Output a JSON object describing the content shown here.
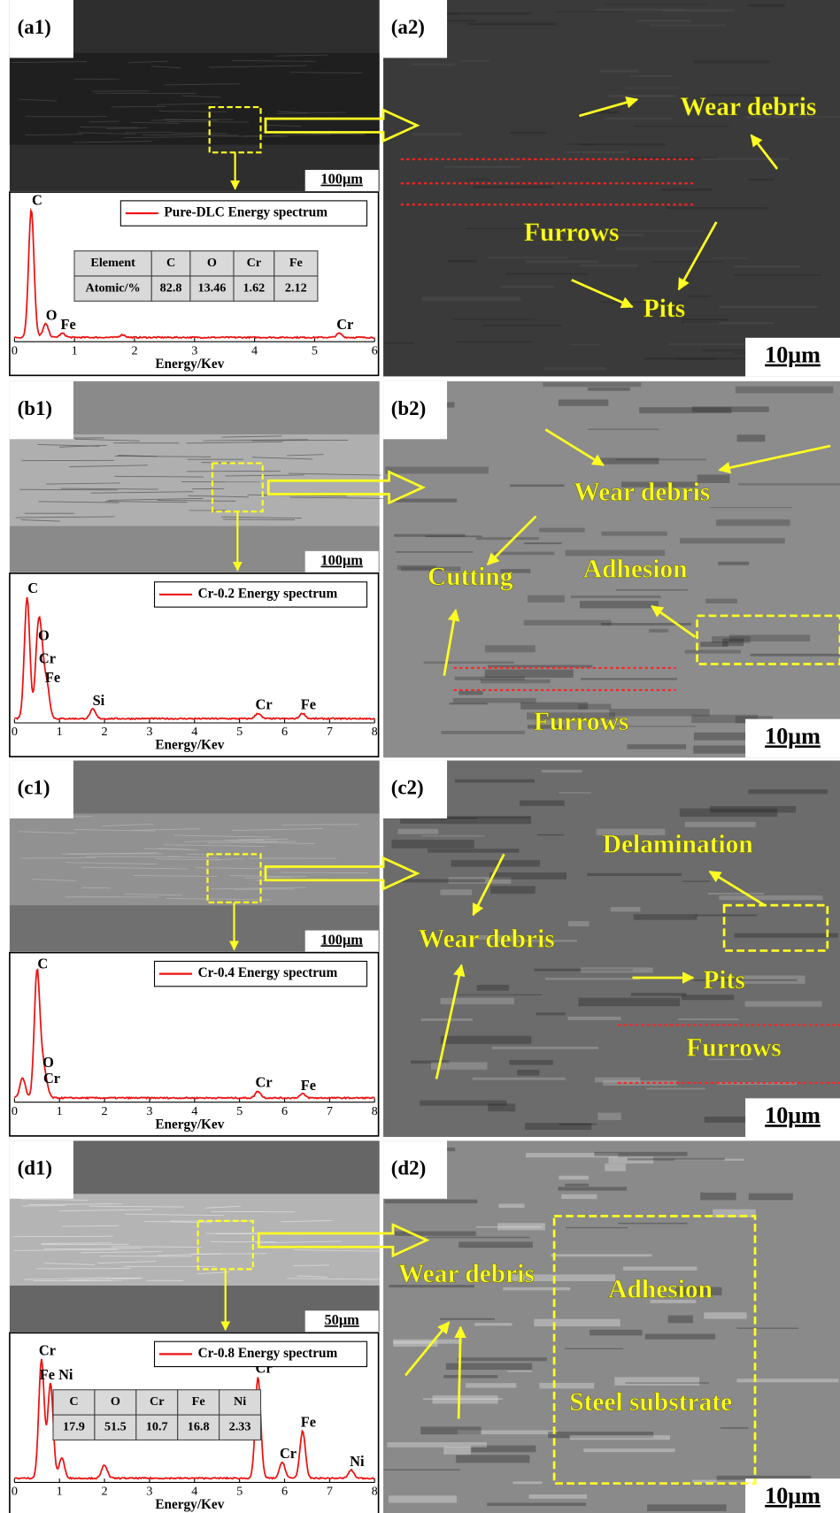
{
  "panels": [
    {
      "left_label": "(a1)",
      "right_label": "(a2)",
      "left_scale": "100μm",
      "right_scale": "10μm",
      "spectrum": {
        "legend": "Pure-DLC Energy spectrum",
        "xlim": [
          0,
          6
        ],
        "xticks": [
          0,
          1,
          2,
          3,
          4,
          5,
          6
        ],
        "xlabel": "Energy/Kev",
        "peaks": [
          {
            "label": "C",
            "energy": 0.28,
            "intensity": 0.95
          },
          {
            "label": "O",
            "energy": 0.52,
            "intensity": 0.1
          },
          {
            "label": "Fe",
            "energy": 0.8,
            "intensity": 0.03
          },
          {
            "energy": 1.8,
            "intensity": 0.02
          },
          {
            "label": "Cr",
            "energy": 5.41,
            "intensity": 0.03
          }
        ],
        "table": {
          "header": [
            "Element",
            "C",
            "O",
            "Cr",
            "Fe"
          ],
          "row": [
            "Atomic/%",
            "82.8",
            "13.46",
            "1.62",
            "2.12"
          ]
        }
      },
      "annotations": [
        "Wear debris",
        "Furrows",
        "Pits"
      ]
    },
    {
      "left_label": "(b1)",
      "right_label": "(b2)",
      "left_scale": "100μm",
      "right_scale": "10μm",
      "spectrum": {
        "legend": "Cr-0.2 Energy spectrum",
        "xlim": [
          0,
          8
        ],
        "xticks": [
          0,
          1,
          2,
          3,
          4,
          5,
          6,
          7,
          8
        ],
        "xlabel": "Energy/Kev",
        "peaks": [
          {
            "label": "C",
            "energy": 0.28,
            "intensity": 0.9
          },
          {
            "label": "O",
            "energy": 0.52,
            "intensity": 0.55
          },
          {
            "label": "Cr",
            "energy": 0.6,
            "intensity": 0.38
          },
          {
            "label": "Fe",
            "energy": 0.72,
            "intensity": 0.24
          },
          {
            "label": "Si",
            "energy": 1.74,
            "intensity": 0.07
          },
          {
            "label": "Cr",
            "energy": 5.41,
            "intensity": 0.04
          },
          {
            "label": "Fe",
            "energy": 6.4,
            "intensity": 0.04
          }
        ]
      },
      "annotations": [
        "Wear debris",
        "Cutting",
        "Adhesion",
        "Furrows"
      ]
    },
    {
      "left_label": "(c1)",
      "right_label": "(c2)",
      "left_scale": "100μm",
      "right_scale": "10μm",
      "spectrum": {
        "legend": "Cr-0.4 Energy spectrum",
        "xlim": [
          0,
          8
        ],
        "xticks": [
          0,
          1,
          2,
          3,
          4,
          5,
          6,
          7,
          8
        ],
        "xlabel": "Energy/Kev",
        "peaks": [
          {
            "energy": 0.18,
            "intensity": 0.15
          },
          {
            "label": "C",
            "energy": 0.5,
            "intensity": 0.93
          },
          {
            "label": "O",
            "energy": 0.62,
            "intensity": 0.2
          },
          {
            "label": "Cr",
            "energy": 0.7,
            "intensity": 0.08
          },
          {
            "label": "Cr",
            "energy": 5.41,
            "intensity": 0.05
          },
          {
            "label": "Fe",
            "energy": 6.4,
            "intensity": 0.03
          }
        ]
      },
      "annotations": [
        "Delamination",
        "Wear debris",
        "Pits",
        "Furrows"
      ]
    },
    {
      "left_label": "(d1)",
      "right_label": "(d2)",
      "left_scale": "50μm",
      "right_scale": "10μm",
      "spectrum": {
        "legend": "Cr-0.8 Energy spectrum",
        "xlim": [
          0,
          8
        ],
        "xticks": [
          0,
          1,
          2,
          3,
          4,
          5,
          6,
          7,
          8
        ],
        "xlabel": "Energy/Kev",
        "peaks": [
          {
            "label": "Cr",
            "energy": 0.6,
            "intensity": 0.88
          },
          {
            "label": "Fe Ni",
            "energy": 0.8,
            "intensity": 0.7
          },
          {
            "energy": 1.05,
            "intensity": 0.15
          },
          {
            "energy": 2.0,
            "intensity": 0.1
          },
          {
            "label": "Cr",
            "energy": 5.41,
            "intensity": 0.75
          },
          {
            "label": "Cr",
            "energy": 5.95,
            "intensity": 0.12
          },
          {
            "label": "Fe",
            "energy": 6.4,
            "intensity": 0.35
          },
          {
            "label": "Ni",
            "energy": 7.48,
            "intensity": 0.06
          }
        ],
        "table": {
          "header": [
            "C",
            "O",
            "Cr",
            "Fe",
            "Ni"
          ],
          "row": [
            "17.9",
            "51.5",
            "10.7",
            "16.8",
            "2.33"
          ]
        }
      },
      "annotations": [
        "Wear debris",
        "Adhesion",
        "Steel substrate"
      ]
    }
  ]
}
